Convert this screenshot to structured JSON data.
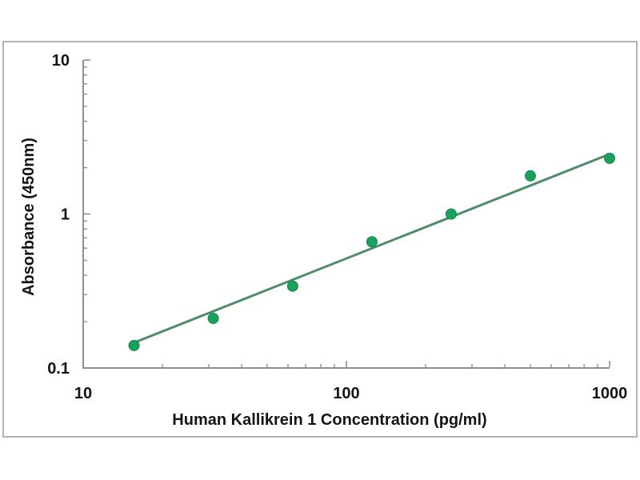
{
  "chart_data": {
    "type": "scatter",
    "title": "",
    "xlabel": "Human Kallikrein 1 Concentration (pg/ml)",
    "ylabel": "Absorbance (450nm)",
    "x_scale": "log",
    "y_scale": "log",
    "xlim": [
      10,
      1000
    ],
    "ylim": [
      0.1,
      10
    ],
    "grid": false,
    "legend": "none",
    "x_ticks": [
      {
        "value": 10,
        "label": "10"
      },
      {
        "value": 100,
        "label": "100"
      },
      {
        "value": 1000,
        "label": "1000"
      }
    ],
    "y_ticks": [
      {
        "value": 0.1,
        "label": "0.1"
      },
      {
        "value": 1,
        "label": "1"
      },
      {
        "value": 10,
        "label": "10"
      }
    ],
    "series": [
      {
        "name": "standard-curve-fit-line",
        "type": "line",
        "line_color": "#4e8c68",
        "points": [
          {
            "x": 15.6,
            "y": 0.146
          },
          {
            "x": 1000,
            "y": 2.45
          }
        ]
      },
      {
        "name": "standard-points",
        "type": "scatter",
        "marker_color": "#1ca05e",
        "marker_edge_color": "#128a4c",
        "points": [
          {
            "x": 15.6,
            "y": 0.14
          },
          {
            "x": 31.2,
            "y": 0.21
          },
          {
            "x": 62.5,
            "y": 0.34
          },
          {
            "x": 125,
            "y": 0.66
          },
          {
            "x": 250,
            "y": 1.0
          },
          {
            "x": 500,
            "y": 1.77
          },
          {
            "x": 1000,
            "y": 2.3
          }
        ]
      }
    ]
  },
  "colors": {
    "panel_border": "#b4b4b4",
    "axis": "#8f8f8f",
    "text": "#151515",
    "background": "#ffffff"
  }
}
